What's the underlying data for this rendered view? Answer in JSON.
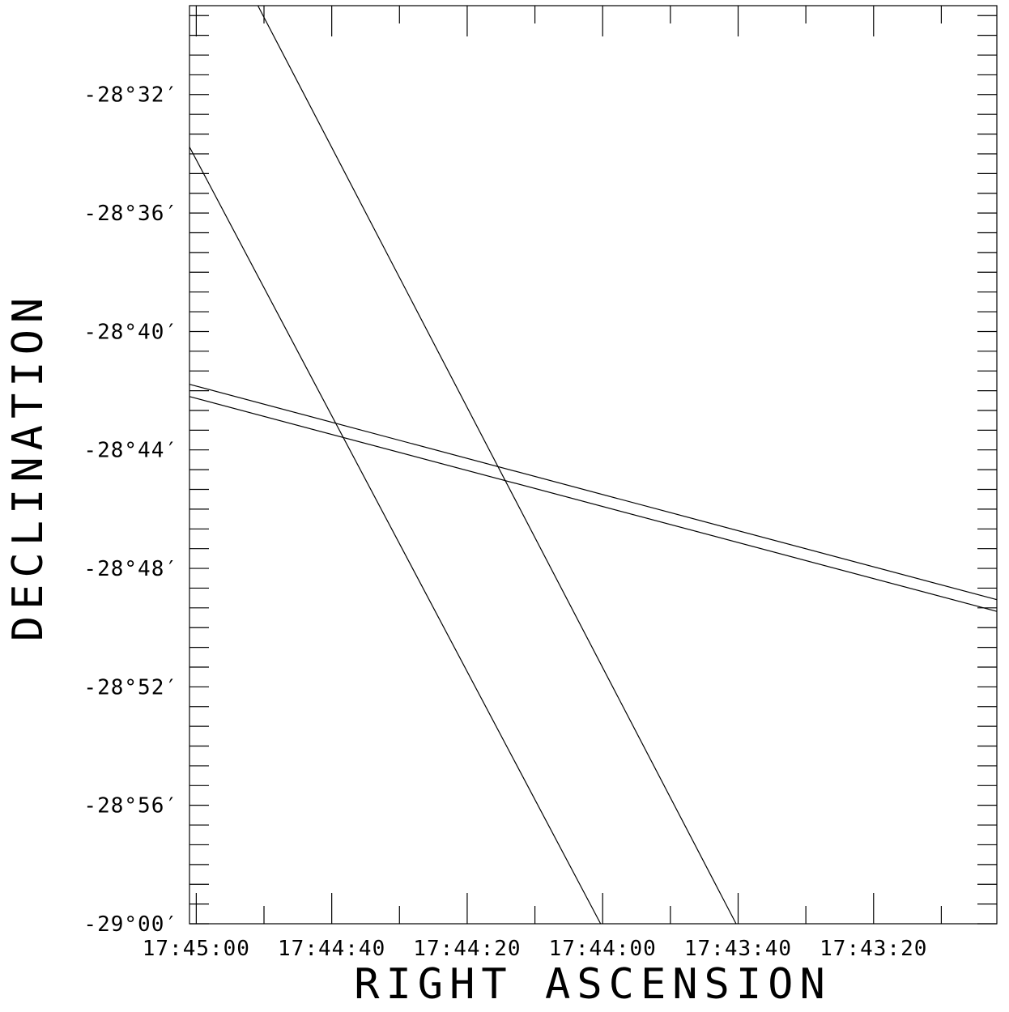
{
  "chart_data": {
    "type": "line",
    "title": "",
    "xlabel": "RIGHT ASCENSION",
    "ylabel": "DECLINATION",
    "x_unit": "seconds of RA relative to 17:43:00",
    "x_reversed": true,
    "xlim": [
      121.0,
      1.8
    ],
    "ylim": [
      -29.0,
      -28.4833
    ],
    "x_ticks": [
      {
        "value": 120,
        "label": "17:45:00"
      },
      {
        "value": 100,
        "label": "17:44:40"
      },
      {
        "value": 80,
        "label": "17:44:20"
      },
      {
        "value": 60,
        "label": "17:44:00"
      },
      {
        "value": 40,
        "label": "17:43:40"
      },
      {
        "value": 20,
        "label": "17:43:20"
      }
    ],
    "x_minor_ticks": [
      130,
      110,
      90,
      70,
      50,
      30,
      10
    ],
    "y_ticks": [
      {
        "value": -28.5333,
        "label": "-28°32′"
      },
      {
        "value": -28.6,
        "label": "-28°36′"
      },
      {
        "value": -28.6667,
        "label": "-28°40′"
      },
      {
        "value": -28.7333,
        "label": "-28°44′"
      },
      {
        "value": -28.8,
        "label": "-28°48′"
      },
      {
        "value": -28.8667,
        "label": "-28°52′"
      },
      {
        "value": -28.9333,
        "label": "-28°56′"
      },
      {
        "value": -29.0,
        "label": "-29°00′"
      }
    ],
    "y_minor_step": 0.011111,
    "grid": false,
    "series": [
      {
        "x": [
          121.0,
          60.3
        ],
        "y": [
          -28.5628,
          -29.0
        ]
      },
      {
        "x": [
          110.9,
          40.3
        ],
        "y": [
          -28.4833,
          -29.0
        ]
      },
      {
        "x": [
          121.0,
          1.8
        ],
        "y": [
          -28.6964,
          -28.8176
        ]
      },
      {
        "x": [
          121.0,
          1.8
        ],
        "y": [
          -28.7033,
          -28.8242
        ]
      }
    ],
    "colors": {
      "line": "#000000",
      "background": "#ffffff"
    }
  }
}
